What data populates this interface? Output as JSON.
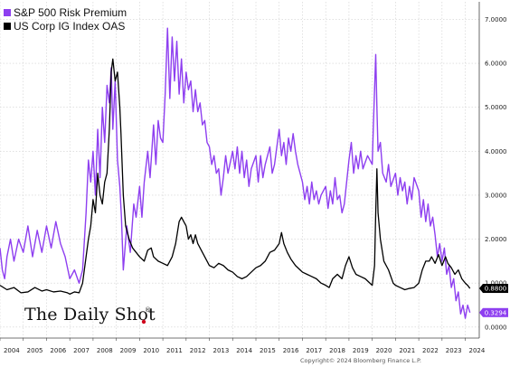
{
  "chart_data": {
    "type": "line",
    "legend_position": "top-left",
    "grid": true,
    "xlim": [
      2004.0,
      2024.6
    ],
    "ylim": [
      -0.25,
      7.4
    ],
    "x_ticks": [
      "2004",
      "2005",
      "2006",
      "2007",
      "2008",
      "2009",
      "2010",
      "2011",
      "2012",
      "2013",
      "2014",
      "2015",
      "2016",
      "2017",
      "2018",
      "2019",
      "2020",
      "2021",
      "2022",
      "2023",
      "2024"
    ],
    "y_ticks": [
      "0.0000",
      "1.0000",
      "2.0000",
      "3.0000",
      "4.0000",
      "5.0000",
      "6.0000",
      "7.0000"
    ],
    "series": [
      {
        "name": "S&P 500 Risk Premium",
        "color": "#8e3ff0",
        "last_value_label": "0.3294",
        "points": [
          [
            2004.0,
            1.8
          ],
          [
            2004.1,
            1.3
          ],
          [
            2004.2,
            1.1
          ],
          [
            2004.3,
            1.6
          ],
          [
            2004.45,
            2.0
          ],
          [
            2004.6,
            1.5
          ],
          [
            2004.8,
            2.0
          ],
          [
            2005.0,
            1.7
          ],
          [
            2005.2,
            2.3
          ],
          [
            2005.4,
            1.6
          ],
          [
            2005.6,
            2.2
          ],
          [
            2005.8,
            1.7
          ],
          [
            2006.0,
            2.3
          ],
          [
            2006.2,
            1.8
          ],
          [
            2006.4,
            2.4
          ],
          [
            2006.6,
            1.9
          ],
          [
            2006.8,
            1.6
          ],
          [
            2007.0,
            1.1
          ],
          [
            2007.2,
            1.3
          ],
          [
            2007.4,
            1.0
          ],
          [
            2007.55,
            1.3
          ],
          [
            2007.7,
            2.6
          ],
          [
            2007.8,
            3.8
          ],
          [
            2007.9,
            3.3
          ],
          [
            2008.0,
            4.0
          ],
          [
            2008.1,
            3.0
          ],
          [
            2008.2,
            4.5
          ],
          [
            2008.3,
            3.4
          ],
          [
            2008.4,
            5.0
          ],
          [
            2008.5,
            4.2
          ],
          [
            2008.6,
            5.5
          ],
          [
            2008.7,
            5.1
          ],
          [
            2008.78,
            5.9
          ],
          [
            2008.85,
            4.5
          ],
          [
            2008.95,
            5.6
          ],
          [
            2009.05,
            3.8
          ],
          [
            2009.15,
            3.2
          ],
          [
            2009.22,
            2.5
          ],
          [
            2009.3,
            1.3
          ],
          [
            2009.45,
            2.3
          ],
          [
            2009.6,
            1.7
          ],
          [
            2009.75,
            2.8
          ],
          [
            2009.85,
            2.5
          ],
          [
            2010.0,
            3.2
          ],
          [
            2010.1,
            2.5
          ],
          [
            2010.2,
            3.3
          ],
          [
            2010.35,
            4.0
          ],
          [
            2010.45,
            3.4
          ],
          [
            2010.6,
            4.6
          ],
          [
            2010.7,
            3.7
          ],
          [
            2010.8,
            4.7
          ],
          [
            2010.9,
            4.3
          ],
          [
            2011.0,
            4.2
          ],
          [
            2011.1,
            5.3
          ],
          [
            2011.2,
            6.8
          ],
          [
            2011.3,
            5.2
          ],
          [
            2011.4,
            6.6
          ],
          [
            2011.5,
            5.6
          ],
          [
            2011.6,
            6.5
          ],
          [
            2011.7,
            5.3
          ],
          [
            2011.8,
            6.1
          ],
          [
            2011.9,
            5.1
          ],
          [
            2012.0,
            5.8
          ],
          [
            2012.1,
            5.4
          ],
          [
            2012.2,
            5.6
          ],
          [
            2012.3,
            4.9
          ],
          [
            2012.4,
            5.4
          ],
          [
            2012.5,
            4.9
          ],
          [
            2012.6,
            5.1
          ],
          [
            2012.7,
            4.6
          ],
          [
            2012.8,
            4.7
          ],
          [
            2012.9,
            4.2
          ],
          [
            2013.0,
            4.1
          ],
          [
            2013.1,
            3.7
          ],
          [
            2013.2,
            3.9
          ],
          [
            2013.3,
            3.5
          ],
          [
            2013.4,
            3.6
          ],
          [
            2013.5,
            3.0
          ],
          [
            2013.6,
            3.4
          ],
          [
            2013.7,
            3.9
          ],
          [
            2013.8,
            3.5
          ],
          [
            2014.0,
            4.0
          ],
          [
            2014.1,
            3.6
          ],
          [
            2014.2,
            4.1
          ],
          [
            2014.3,
            3.5
          ],
          [
            2014.4,
            4.0
          ],
          [
            2014.5,
            3.4
          ],
          [
            2014.6,
            3.8
          ],
          [
            2014.7,
            3.2
          ],
          [
            2014.8,
            3.6
          ],
          [
            2015.0,
            3.9
          ],
          [
            2015.1,
            3.3
          ],
          [
            2015.2,
            3.9
          ],
          [
            2015.3,
            3.4
          ],
          [
            2015.4,
            3.7
          ],
          [
            2015.5,
            3.9
          ],
          [
            2015.6,
            4.1
          ],
          [
            2015.7,
            3.5
          ],
          [
            2015.8,
            3.7
          ],
          [
            2016.0,
            4.5
          ],
          [
            2016.1,
            3.9
          ],
          [
            2016.2,
            4.2
          ],
          [
            2016.3,
            3.7
          ],
          [
            2016.4,
            4.3
          ],
          [
            2016.5,
            4.0
          ],
          [
            2016.6,
            4.4
          ],
          [
            2016.7,
            4.0
          ],
          [
            2016.8,
            3.7
          ],
          [
            2017.0,
            3.3
          ],
          [
            2017.1,
            2.9
          ],
          [
            2017.2,
            3.2
          ],
          [
            2017.3,
            2.8
          ],
          [
            2017.4,
            3.3
          ],
          [
            2017.5,
            2.9
          ],
          [
            2017.6,
            3.1
          ],
          [
            2017.7,
            2.8
          ],
          [
            2017.8,
            3.0
          ],
          [
            2018.0,
            3.2
          ],
          [
            2018.1,
            2.7
          ],
          [
            2018.2,
            3.1
          ],
          [
            2018.3,
            2.8
          ],
          [
            2018.4,
            3.4
          ],
          [
            2018.5,
            2.9
          ],
          [
            2018.6,
            3.0
          ],
          [
            2018.7,
            2.6
          ],
          [
            2018.8,
            2.8
          ],
          [
            2019.0,
            3.8
          ],
          [
            2019.1,
            4.2
          ],
          [
            2019.2,
            3.5
          ],
          [
            2019.3,
            3.9
          ],
          [
            2019.4,
            3.6
          ],
          [
            2019.5,
            4.0
          ],
          [
            2019.6,
            3.6
          ],
          [
            2019.8,
            3.9
          ],
          [
            2020.0,
            3.7
          ],
          [
            2020.05,
            4.6
          ],
          [
            2020.15,
            6.2
          ],
          [
            2020.2,
            5.0
          ],
          [
            2020.25,
            4.0
          ],
          [
            2020.35,
            4.2
          ],
          [
            2020.45,
            3.5
          ],
          [
            2020.6,
            3.3
          ],
          [
            2020.7,
            3.7
          ],
          [
            2020.8,
            3.2
          ],
          [
            2021.0,
            3.5
          ],
          [
            2021.1,
            3.0
          ],
          [
            2021.2,
            3.4
          ],
          [
            2021.3,
            3.1
          ],
          [
            2021.4,
            3.3
          ],
          [
            2021.5,
            2.8
          ],
          [
            2021.6,
            3.2
          ],
          [
            2021.7,
            2.9
          ],
          [
            2021.8,
            3.4
          ],
          [
            2022.0,
            3.1
          ],
          [
            2022.1,
            2.5
          ],
          [
            2022.2,
            2.9
          ],
          [
            2022.3,
            2.4
          ],
          [
            2022.4,
            2.8
          ],
          [
            2022.5,
            2.3
          ],
          [
            2022.6,
            2.5
          ],
          [
            2022.7,
            2.1
          ],
          [
            2022.8,
            1.6
          ],
          [
            2022.9,
            1.9
          ],
          [
            2023.0,
            1.5
          ],
          [
            2023.1,
            1.8
          ],
          [
            2023.2,
            1.2
          ],
          [
            2023.3,
            1.4
          ],
          [
            2023.4,
            0.9
          ],
          [
            2023.5,
            1.1
          ],
          [
            2023.6,
            0.6
          ],
          [
            2023.7,
            0.8
          ],
          [
            2023.8,
            0.3
          ],
          [
            2023.9,
            0.5
          ],
          [
            2024.0,
            0.2
          ],
          [
            2024.1,
            0.5
          ],
          [
            2024.2,
            0.33
          ]
        ]
      },
      {
        "name": "US Corp IG Index OAS",
        "color": "#000000",
        "last_value_label": "0.8800",
        "points": [
          [
            2004.0,
            0.95
          ],
          [
            2004.3,
            0.85
          ],
          [
            2004.6,
            0.9
          ],
          [
            2004.9,
            0.78
          ],
          [
            2005.2,
            0.8
          ],
          [
            2005.5,
            0.9
          ],
          [
            2005.8,
            0.82
          ],
          [
            2006.0,
            0.85
          ],
          [
            2006.3,
            0.8
          ],
          [
            2006.6,
            0.82
          ],
          [
            2006.9,
            0.78
          ],
          [
            2007.0,
            0.75
          ],
          [
            2007.2,
            0.8
          ],
          [
            2007.4,
            0.78
          ],
          [
            2007.55,
            1.0
          ],
          [
            2007.7,
            1.6
          ],
          [
            2007.8,
            2.0
          ],
          [
            2007.9,
            2.3
          ],
          [
            2008.0,
            2.9
          ],
          [
            2008.1,
            2.6
          ],
          [
            2008.2,
            3.5
          ],
          [
            2008.3,
            3.0
          ],
          [
            2008.4,
            2.8
          ],
          [
            2008.5,
            3.3
          ],
          [
            2008.6,
            3.5
          ],
          [
            2008.7,
            4.5
          ],
          [
            2008.78,
            5.8
          ],
          [
            2008.85,
            6.1
          ],
          [
            2008.95,
            5.6
          ],
          [
            2009.05,
            5.8
          ],
          [
            2009.15,
            5.0
          ],
          [
            2009.2,
            4.4
          ],
          [
            2009.3,
            3.0
          ],
          [
            2009.4,
            2.3
          ],
          [
            2009.55,
            2.0
          ],
          [
            2009.7,
            1.8
          ],
          [
            2009.85,
            1.7
          ],
          [
            2010.0,
            1.6
          ],
          [
            2010.2,
            1.5
          ],
          [
            2010.35,
            1.75
          ],
          [
            2010.5,
            1.8
          ],
          [
            2010.6,
            1.6
          ],
          [
            2010.8,
            1.5
          ],
          [
            2011.0,
            1.45
          ],
          [
            2011.2,
            1.4
          ],
          [
            2011.4,
            1.6
          ],
          [
            2011.55,
            1.9
          ],
          [
            2011.7,
            2.4
          ],
          [
            2011.8,
            2.5
          ],
          [
            2011.9,
            2.4
          ],
          [
            2012.0,
            2.3
          ],
          [
            2012.1,
            2.0
          ],
          [
            2012.2,
            2.1
          ],
          [
            2012.3,
            1.9
          ],
          [
            2012.4,
            2.1
          ],
          [
            2012.5,
            1.9
          ],
          [
            2012.7,
            1.7
          ],
          [
            2012.9,
            1.5
          ],
          [
            2013.0,
            1.4
          ],
          [
            2013.2,
            1.35
          ],
          [
            2013.4,
            1.45
          ],
          [
            2013.6,
            1.4
          ],
          [
            2013.8,
            1.3
          ],
          [
            2014.0,
            1.25
          ],
          [
            2014.2,
            1.15
          ],
          [
            2014.4,
            1.1
          ],
          [
            2014.6,
            1.15
          ],
          [
            2014.8,
            1.25
          ],
          [
            2015.0,
            1.35
          ],
          [
            2015.2,
            1.4
          ],
          [
            2015.4,
            1.5
          ],
          [
            2015.6,
            1.7
          ],
          [
            2015.8,
            1.75
          ],
          [
            2016.0,
            1.9
          ],
          [
            2016.1,
            2.15
          ],
          [
            2016.2,
            1.9
          ],
          [
            2016.35,
            1.7
          ],
          [
            2016.5,
            1.55
          ],
          [
            2016.7,
            1.4
          ],
          [
            2016.9,
            1.3
          ],
          [
            2017.0,
            1.25
          ],
          [
            2017.2,
            1.2
          ],
          [
            2017.4,
            1.15
          ],
          [
            2017.6,
            1.1
          ],
          [
            2017.8,
            1.0
          ],
          [
            2018.0,
            0.95
          ],
          [
            2018.15,
            0.9
          ],
          [
            2018.3,
            1.1
          ],
          [
            2018.5,
            1.2
          ],
          [
            2018.7,
            1.1
          ],
          [
            2018.85,
            1.4
          ],
          [
            2019.0,
            1.6
          ],
          [
            2019.15,
            1.35
          ],
          [
            2019.3,
            1.2
          ],
          [
            2019.5,
            1.15
          ],
          [
            2019.7,
            1.1
          ],
          [
            2019.9,
            1.0
          ],
          [
            2020.0,
            0.95
          ],
          [
            2020.1,
            1.4
          ],
          [
            2020.15,
            2.6
          ],
          [
            2020.2,
            3.6
          ],
          [
            2020.25,
            2.6
          ],
          [
            2020.35,
            2.0
          ],
          [
            2020.5,
            1.5
          ],
          [
            2020.7,
            1.3
          ],
          [
            2020.9,
            1.0
          ],
          [
            2021.0,
            0.95
          ],
          [
            2021.2,
            0.9
          ],
          [
            2021.4,
            0.85
          ],
          [
            2021.6,
            0.88
          ],
          [
            2021.8,
            0.9
          ],
          [
            2022.0,
            1.0
          ],
          [
            2022.15,
            1.3
          ],
          [
            2022.3,
            1.5
          ],
          [
            2022.45,
            1.5
          ],
          [
            2022.55,
            1.6
          ],
          [
            2022.7,
            1.45
          ],
          [
            2022.85,
            1.65
          ],
          [
            2023.0,
            1.4
          ],
          [
            2023.15,
            1.6
          ],
          [
            2023.25,
            1.45
          ],
          [
            2023.4,
            1.35
          ],
          [
            2023.55,
            1.2
          ],
          [
            2023.7,
            1.3
          ],
          [
            2023.85,
            1.1
          ],
          [
            2024.0,
            1.0
          ],
          [
            2024.1,
            0.95
          ],
          [
            2024.2,
            0.88
          ]
        ]
      }
    ]
  },
  "logo": {
    "text": "The Daily Shot",
    "reg_mark": "®",
    "dot_color": "#d0021b"
  },
  "copyright": "Copyright© 2024 Bloomberg Finance L.P."
}
